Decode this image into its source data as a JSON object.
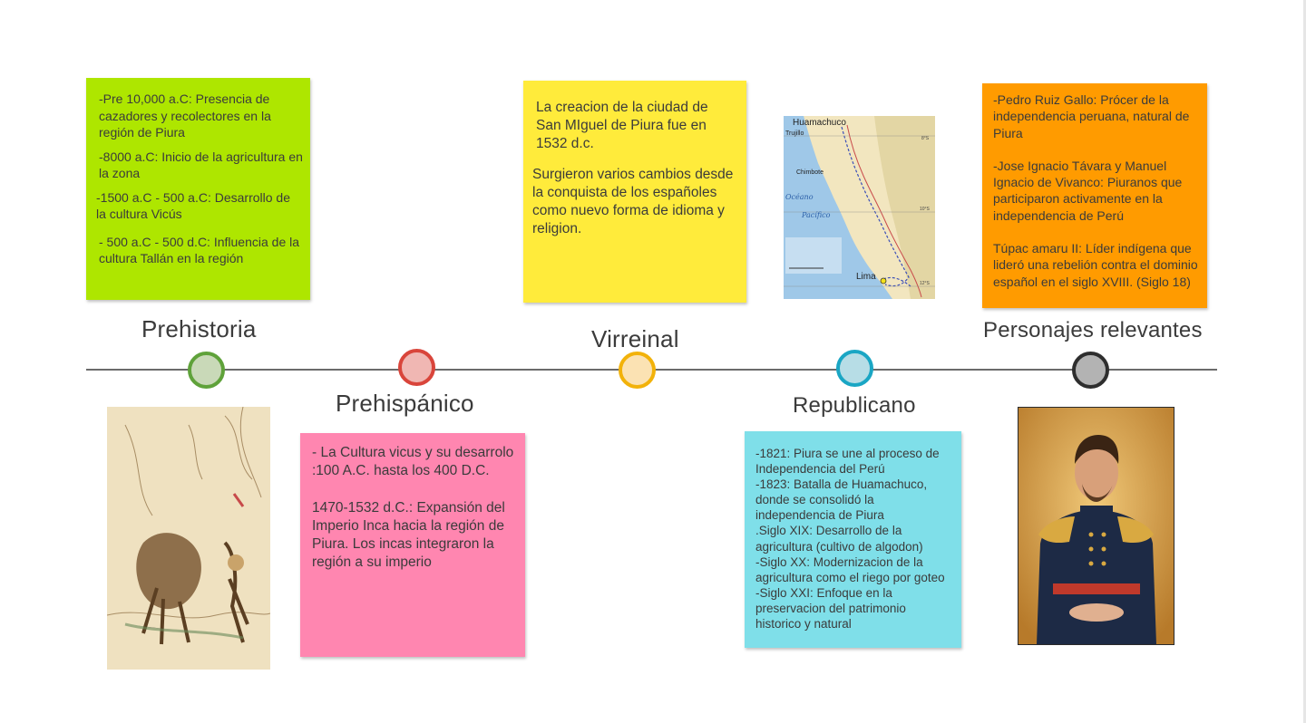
{
  "stages": {
    "prehistoria": {
      "title": "Prehistoria",
      "color": "#5fa23a",
      "fill": "#c9d9b8",
      "note_color": "#aee600",
      "lines": [
        "-Pre 10,000 a.C: Presencia de cazadores y recolectores en la región de Piura",
        "-8000 a.C: Inicio de la agricultura en la zona",
        "-1500 a.C - 500 a.C: Desarrollo de la cultura Vicús",
        "- 500 a.C - 500 d.C: Influencia de la cultura Tallán en la región"
      ]
    },
    "prehispanico": {
      "title": "Prehispánico",
      "color": "#d9453b",
      "fill": "#f0b7b3",
      "note_color": "#ff86b0",
      "lines": [
        "- La Cultura vicus y su desarrolo :100 A.C. hasta los 400 D.C.",
        "1470-1532 d.C.: Expansión del Imperio Inca hacia la región de Piura. Los incas integraron la región a su imperio"
      ]
    },
    "virreinal": {
      "title": "Virreinal",
      "color": "#f2b20a",
      "fill": "#fbe2b3",
      "note_color": "#ffeb3b",
      "lines": [
        "La creacion de la ciudad de San MIguel de Piura fue en 1532 d.c.",
        "Surgieron varios cambios desde la conquista de los españoles como nuevo forma de idioma y religion."
      ]
    },
    "republicano": {
      "title": "Republicano",
      "color": "#1aa6c4",
      "fill": "#b7dde6",
      "note_color": "#7fdfe9",
      "lines": [
        "-1821: Piura se une al proceso de Independencia del Perú",
        "-1823: Batalla de Huamachuco, donde se consolidó la independencia de Piura",
        ".Siglo XIX: Desarrollo de la agricultura (cultivo de algodon)",
        "-Siglo XX: Modernizacion de la agricultura como el riego por goteo",
        "-Siglo XXI: Enfoque en la preservacion del patrimonio historico y natural"
      ]
    },
    "personajes": {
      "title": "Personajes relevantes",
      "color": "#2e2e2e",
      "fill": "#b3b3b3",
      "note_color": "#ff9b00",
      "lines": [
        "-Pedro Ruiz Gallo: Prócer de la independencia peruana, natural de Piura",
        "-Jose Ignacio Távara y Manuel Ignacio de Vivanco: Piuranos que participaron activamente en la independencia de Perú",
        "Túpac amaru II: Líder indígena que lideró una rebelión contra el dominio español en el siglo XVIII. (Siglo 18)"
      ]
    }
  },
  "map": {
    "labels": {
      "huamachuco": "Huamachuco",
      "trujillo": "Trujillo",
      "chimbote": "Chimbote",
      "oceano": "Océano",
      "pacifico": "Pacífico",
      "lima": "Lima",
      "lat8": "8°S",
      "lat10": "10°S",
      "lat12": "12°S"
    }
  }
}
